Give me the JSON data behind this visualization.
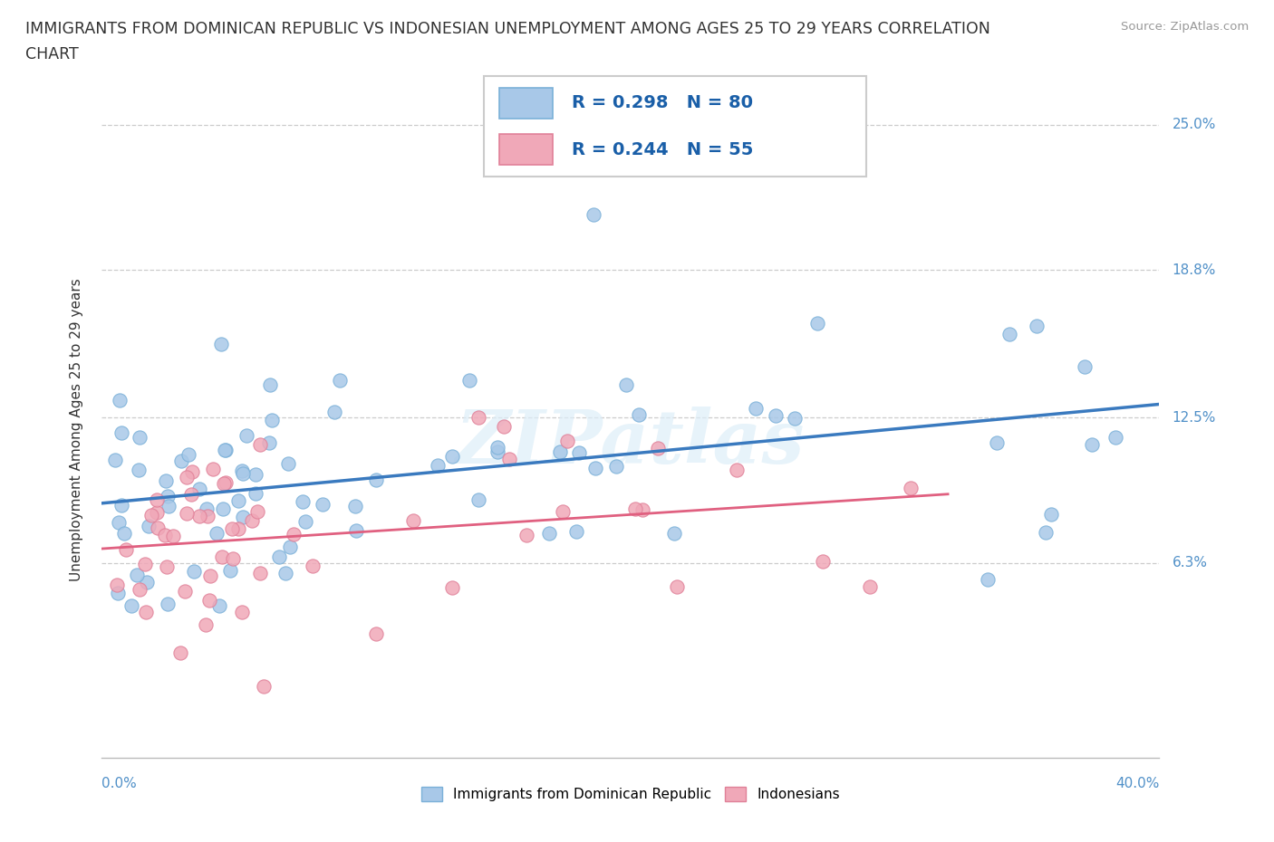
{
  "title_line1": "IMMIGRANTS FROM DOMINICAN REPUBLIC VS INDONESIAN UNEMPLOYMENT AMONG AGES 25 TO 29 YEARS CORRELATION",
  "title_line2": "CHART",
  "source": "Source: ZipAtlas.com",
  "legend1_r": "0.298",
  "legend1_n": "80",
  "legend2_r": "0.244",
  "legend2_n": "55",
  "blue_color": "#a8c8e8",
  "pink_color": "#f0a8b8",
  "blue_edge": "#7ab0d8",
  "pink_edge": "#e08098",
  "trend_blue": "#3a7abf",
  "trend_pink": "#e06080",
  "ytick_color": "#5090c8",
  "text_color": "#333333",
  "source_color": "#999999",
  "watermark_color": "#d8e8f0",
  "grid_color": "#cccccc",
  "xmin": 0.0,
  "xmax": 40.0,
  "ymin": 0.0,
  "ymax": 25.0,
  "yticks": [
    6.3,
    12.5,
    18.8,
    25.0
  ],
  "ylabel_text": "Unemployment Among Ages 25 to 29 years",
  "bottom_legend1": "Immigrants from Dominican Republic",
  "bottom_legend2": "Indonesians"
}
